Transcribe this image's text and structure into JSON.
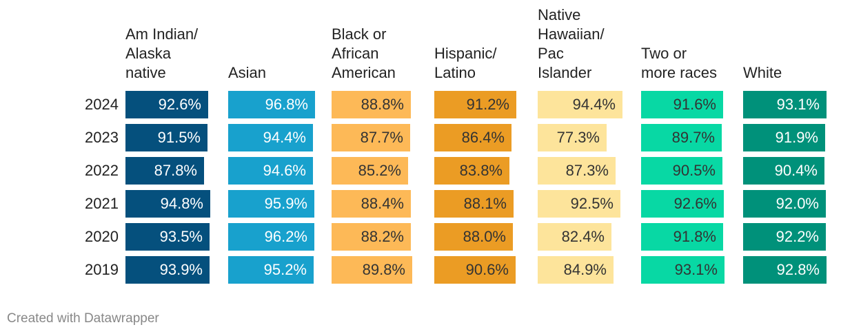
{
  "chart_data": {
    "type": "table",
    "title": "",
    "xlabel": "",
    "ylabel": "",
    "xlim": [
      0,
      100
    ],
    "categories": [
      "2024",
      "2023",
      "2022",
      "2021",
      "2020",
      "2019"
    ],
    "series": [
      {
        "name": "Am Indian/\nAlaska\nnative",
        "color": "#05507d",
        "text_color": "#ffffff",
        "values": [
          92.6,
          91.5,
          87.8,
          94.8,
          93.5,
          93.9
        ],
        "labels": [
          "92.6%",
          "91.5%",
          "87.8%",
          "94.8%",
          "93.5%",
          "93.9%"
        ]
      },
      {
        "name": "Asian",
        "color": "#18a1cd",
        "text_color": "#ffffff",
        "values": [
          96.8,
          94.4,
          94.6,
          95.9,
          96.2,
          95.2
        ],
        "labels": [
          "96.8%",
          "94.4%",
          "94.6%",
          "95.9%",
          "96.2%",
          "95.2%"
        ]
      },
      {
        "name": "Black or\nAfrican\nAmerican",
        "color": "#fdb957",
        "text_color": "#333333",
        "values": [
          88.8,
          87.7,
          85.2,
          88.4,
          88.2,
          89.8
        ],
        "labels": [
          "88.8%",
          "87.7%",
          "85.2%",
          "88.4%",
          "88.2%",
          "89.8%"
        ]
      },
      {
        "name": "Hispanic/\nLatino",
        "color": "#eb9c24",
        "text_color": "#333333",
        "values": [
          91.2,
          86.4,
          83.8,
          88.1,
          88.0,
          90.6
        ],
        "labels": [
          "91.2%",
          "86.4%",
          "83.8%",
          "88.1%",
          "88.0%",
          "90.6%"
        ]
      },
      {
        "name": "Native\nHawaiian/\nPac\nIslander",
        "color": "#fde49b",
        "text_color": "#333333",
        "values": [
          94.4,
          77.3,
          87.3,
          92.5,
          82.4,
          84.9
        ],
        "labels": [
          "94.4%",
          "77.3%",
          "87.3%",
          "92.5%",
          "82.4%",
          "84.9%"
        ]
      },
      {
        "name": "Two or\nmore races",
        "color": "#08d8a4",
        "text_color": "#333333",
        "values": [
          91.6,
          89.7,
          90.5,
          92.6,
          91.8,
          93.1
        ],
        "labels": [
          "91.6%",
          "89.7%",
          "90.5%",
          "92.6%",
          "91.8%",
          "93.1%"
        ]
      },
      {
        "name": "White",
        "color": "#00917a",
        "text_color": "#ffffff",
        "values": [
          93.1,
          91.9,
          90.4,
          92.0,
          92.2,
          92.8
        ],
        "labels": [
          "93.1%",
          "91.9%",
          "90.4%",
          "92.0%",
          "92.2%",
          "92.8%"
        ]
      }
    ]
  },
  "footer": {
    "credit": "Created with Datawrapper"
  }
}
